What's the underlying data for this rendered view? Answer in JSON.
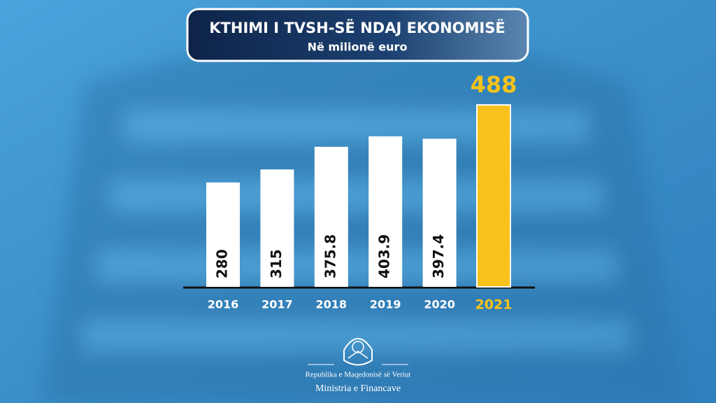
{
  "chart_data": {
    "type": "bar",
    "title": "KTHIMI I TVSH-SË NDAJ EKONOMISË",
    "subtitle": "Në milionë euro",
    "categories": [
      "2016",
      "2017",
      "2018",
      "2019",
      "2020",
      "2021"
    ],
    "values": [
      280,
      315,
      375.8,
      403.9,
      397.4,
      488
    ],
    "colors": [
      "#ffffff",
      "#ffffff",
      "#ffffff",
      "#ffffff",
      "#ffffff",
      "#f7c31a"
    ]
  },
  "footer": {
    "country": "Republika e Maqedonisë së Veriut",
    "ministry": "Ministria e Financave"
  }
}
